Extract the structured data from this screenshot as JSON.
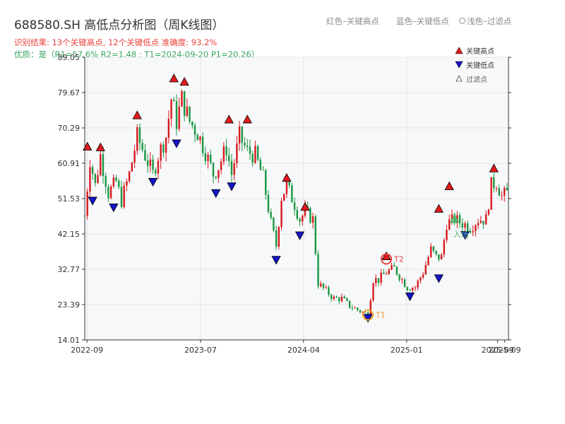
{
  "header": {
    "title": "688580.SH 高低点分析图（周K线图）",
    "result_line": "识别结果: 13个关键高点, 12个关键低点   准确度: 93.2%",
    "quality_line": "优质：是（R1=57.6%  R2=1.48 ; T1=2024-09-20 P1=20.26）"
  },
  "top_legend": {
    "red": "红色–关键高点",
    "blue": "蓝色–关键低点",
    "light": "浅色–过滤点"
  },
  "colors": {
    "up": "#d7191c",
    "down": "#1a9641",
    "high_marker": "#e31a1c",
    "low_marker": "#1414c8",
    "t1_ring": "#f0a030",
    "t2_ring": "#e8433e",
    "entry": "#4db36a",
    "plot_bg": "#f7f8fa",
    "grid": "#dddddd"
  },
  "chart_data": {
    "type": "candlestick",
    "ylim": [
      14.01,
      89.05
    ],
    "yticks": [
      14.01,
      23.39,
      32.77,
      42.15,
      51.53,
      60.91,
      70.29,
      79.67,
      89.05
    ],
    "xrange": [
      "2022-08-26",
      "2025-09-30"
    ],
    "xticks": [
      {
        "date": "2022-09-01",
        "label": "2022-09"
      },
      {
        "date": "2023-07-01",
        "label": "2023-07"
      },
      {
        "date": "2024-04-01",
        "label": "2024-04"
      },
      {
        "date": "2025-01-01",
        "label": "2025-01"
      },
      {
        "date": "2025-09-01",
        "label": "2025-09"
      },
      {
        "date": "2025-09-20",
        "label": "2025-09"
      }
    ],
    "legend": {
      "high": "关键高点",
      "low": "关键低点",
      "filtered": "过滤点",
      "position": "top-right"
    },
    "price_anchors": [
      [
        "2022-08-26",
        47
      ],
      [
        "2022-09-09",
        62
      ],
      [
        "2022-09-23",
        55
      ],
      [
        "2022-10-07",
        63
      ],
      [
        "2022-10-28",
        53
      ],
      [
        "2022-11-18",
        56
      ],
      [
        "2022-12-02",
        51
      ],
      [
        "2022-12-23",
        58
      ],
      [
        "2023-01-13",
        68
      ],
      [
        "2023-02-03",
        63
      ],
      [
        "2023-02-24",
        58
      ],
      [
        "2023-03-10",
        63
      ],
      [
        "2023-03-31",
        68
      ],
      [
        "2023-04-14",
        78
      ],
      [
        "2023-04-28",
        72
      ],
      [
        "2023-05-12",
        78
      ],
      [
        "2023-06-02",
        72
      ],
      [
        "2023-06-23",
        69
      ],
      [
        "2023-07-14",
        64
      ],
      [
        "2023-08-04",
        58
      ],
      [
        "2023-08-18",
        60
      ],
      [
        "2023-09-08",
        65
      ],
      [
        "2023-09-22",
        58
      ],
      [
        "2023-10-13",
        68
      ],
      [
        "2023-11-03",
        64
      ],
      [
        "2023-11-24",
        63
      ],
      [
        "2023-12-15",
        57
      ],
      [
        "2024-01-05",
        45
      ],
      [
        "2024-01-19",
        39
      ],
      [
        "2024-02-02",
        52
      ],
      [
        "2024-02-16",
        55
      ],
      [
        "2024-03-08",
        50
      ],
      [
        "2024-03-22",
        46
      ],
      [
        "2024-04-05",
        48
      ],
      [
        "2024-04-26",
        46
      ],
      [
        "2024-05-10",
        29
      ],
      [
        "2024-05-31",
        27
      ],
      [
        "2024-06-21",
        25
      ],
      [
        "2024-07-12",
        25
      ],
      [
        "2024-08-02",
        23
      ],
      [
        "2024-08-23",
        22
      ],
      [
        "2024-09-13",
        21
      ],
      [
        "2024-09-20",
        21
      ],
      [
        "2024-10-04",
        30
      ],
      [
        "2024-10-18",
        30
      ],
      [
        "2024-11-08",
        32
      ],
      [
        "2024-11-29",
        33
      ],
      [
        "2024-12-20",
        30
      ],
      [
        "2025-01-03",
        28
      ],
      [
        "2025-01-24",
        28
      ],
      [
        "2025-02-14",
        32
      ],
      [
        "2025-03-07",
        38
      ],
      [
        "2025-03-21",
        36
      ],
      [
        "2025-04-04",
        36
      ],
      [
        "2025-04-18",
        45
      ],
      [
        "2025-05-09",
        46
      ],
      [
        "2025-05-30",
        45
      ],
      [
        "2025-06-20",
        44
      ],
      [
        "2025-07-11",
        46
      ],
      [
        "2025-08-01",
        46
      ],
      [
        "2025-08-15",
        55
      ],
      [
        "2025-08-29",
        56
      ],
      [
        "2025-09-12",
        52
      ],
      [
        "2025-09-26",
        53
      ]
    ],
    "key_highs": [
      {
        "date": "2022-09-02",
        "price": 64.2
      },
      {
        "date": "2022-10-07",
        "price": 64.0
      },
      {
        "date": "2023-01-13",
        "price": 72.5
      },
      {
        "date": "2023-04-21",
        "price": 82.3
      },
      {
        "date": "2023-05-19",
        "price": 81.4
      },
      {
        "date": "2023-09-15",
        "price": 71.4
      },
      {
        "date": "2023-11-03",
        "price": 71.4
      },
      {
        "date": "2024-02-16",
        "price": 55.9
      },
      {
        "date": "2024-04-05",
        "price": 48.2
      },
      {
        "date": "2024-11-08",
        "price": 35.1
      },
      {
        "date": "2025-03-28",
        "price": 47.7
      },
      {
        "date": "2025-04-25",
        "price": 53.7
      },
      {
        "date": "2025-08-22",
        "price": 58.4
      }
    ],
    "key_lows": [
      {
        "date": "2022-09-16",
        "price": 52.1
      },
      {
        "date": "2022-11-11",
        "price": 50.3
      },
      {
        "date": "2023-02-24",
        "price": 57.1
      },
      {
        "date": "2023-04-28",
        "price": 67.3
      },
      {
        "date": "2023-08-11",
        "price": 54.1
      },
      {
        "date": "2023-09-22",
        "price": 55.9
      },
      {
        "date": "2024-01-19",
        "price": 36.4
      },
      {
        "date": "2024-03-22",
        "price": 42.9
      },
      {
        "date": "2024-09-20",
        "price": 21.0
      },
      {
        "date": "2025-01-10",
        "price": 26.7
      },
      {
        "date": "2025-03-28",
        "price": 31.5
      },
      {
        "date": "2025-06-06",
        "price": 43.0
      }
    ],
    "t1": {
      "label": "T1",
      "date": "2024-09-20",
      "price": 20.26
    },
    "t2": {
      "label": "T2",
      "date": "2024-11-08",
      "price": 35.5
    },
    "entry": {
      "label": "入场",
      "date": "2025-05-09",
      "price": 45.8
    }
  }
}
